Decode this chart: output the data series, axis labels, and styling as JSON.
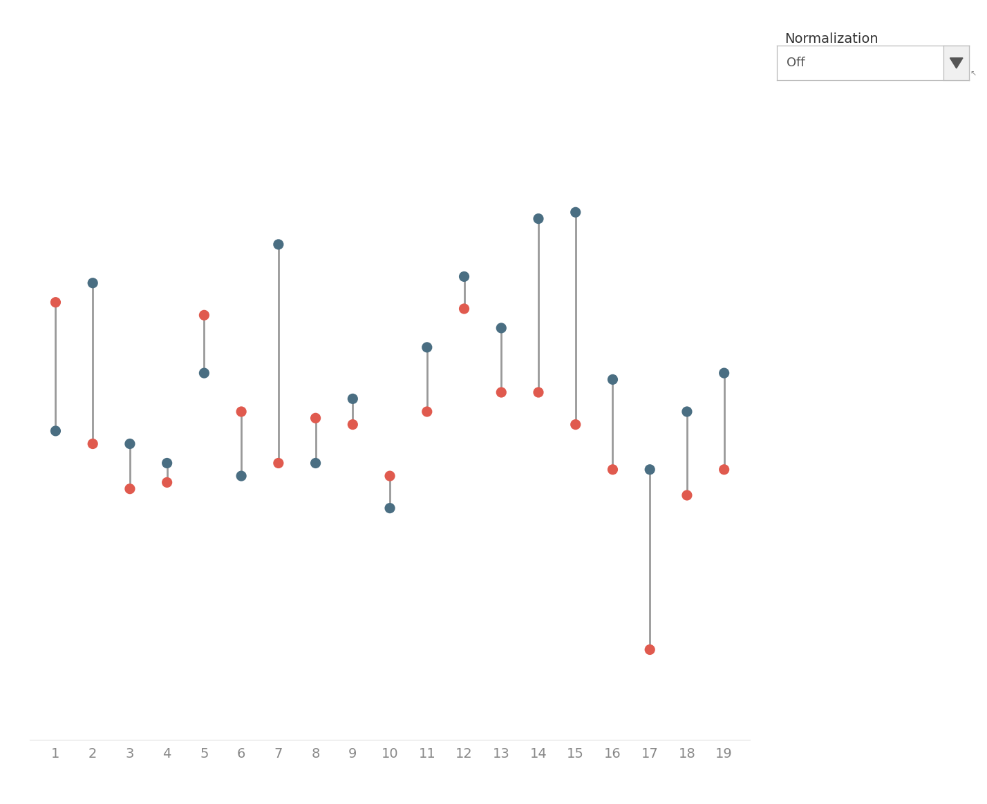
{
  "categories": [
    1,
    2,
    3,
    4,
    5,
    6,
    7,
    8,
    9,
    10,
    11,
    12,
    13,
    14,
    15,
    16,
    17,
    18,
    19
  ],
  "red_values": [
    68,
    46,
    39,
    40,
    66,
    51,
    43,
    50,
    49,
    41,
    51,
    67,
    54,
    54,
    49,
    42,
    14,
    38,
    42
  ],
  "blue_values": [
    48,
    71,
    46,
    43,
    57,
    41,
    77,
    43,
    53,
    36,
    61,
    72,
    64,
    81,
    82,
    56,
    42,
    51,
    57
  ],
  "red_color": "#E05A4E",
  "blue_color": "#4A6E82",
  "line_color": "#999999",
  "background_color": "#FFFFFF",
  "grid_color": "#E0E0E0",
  "dot_size": 120,
  "line_width": 2.0,
  "y_min": 0,
  "y_max": 100,
  "annotation_title": "Normalization",
  "annotation_label": "Off",
  "font_color": "#888888",
  "tick_font_size": 14,
  "ann_title_font_size": 14
}
